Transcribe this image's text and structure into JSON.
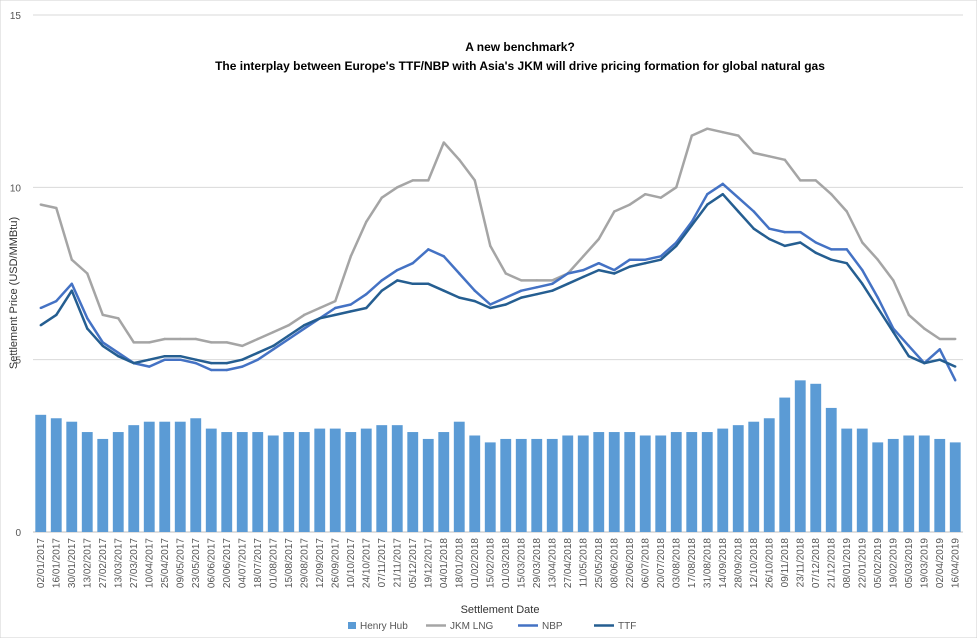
{
  "chart_data": {
    "type": "line",
    "title": "A new benchmark?",
    "subtitle": "The interplay between Europe's TTF/NBP with Asia's JKM will drive pricing formation for global natural gas",
    "xlabel": "Settlement Date",
    "ylabel": "Settlement Price (USD/MMBtu)",
    "ylim": [
      0,
      15
    ],
    "yticks": [
      "0",
      "5",
      "10",
      "15"
    ],
    "x": [
      "02/01/2017",
      "16/01/2017",
      "30/01/2017",
      "13/02/2017",
      "27/02/2017",
      "13/03/2017",
      "27/03/2017",
      "10/04/2017",
      "25/04/2017",
      "09/05/2017",
      "23/05/2017",
      "06/06/2017",
      "20/06/2017",
      "04/07/2017",
      "18/07/2017",
      "01/08/2017",
      "15/08/2017",
      "29/08/2017",
      "12/09/2017",
      "26/09/2017",
      "10/10/2017",
      "24/10/2017",
      "07/11/2017",
      "21/11/2017",
      "05/12/2017",
      "19/12/2017",
      "04/01/2018",
      "18/01/2018",
      "01/02/2018",
      "15/02/2018",
      "01/03/2018",
      "15/03/2018",
      "29/03/2018",
      "13/04/2018",
      "27/04/2018",
      "11/05/2018",
      "25/05/2018",
      "08/06/2018",
      "22/06/2018",
      "06/07/2018",
      "20/07/2018",
      "03/08/2018",
      "17/08/2018",
      "31/08/2018",
      "14/09/2018",
      "28/09/2018",
      "12/10/2018",
      "26/10/2018",
      "09/11/2018",
      "23/11/2018",
      "07/12/2018",
      "21/12/2018",
      "08/01/2019",
      "22/01/2019",
      "05/02/2019",
      "19/02/2019",
      "05/03/2019",
      "19/03/2019",
      "02/04/2019",
      "16/04/2019"
    ],
    "series": [
      {
        "name": "Henry Hub",
        "kind": "bar",
        "color": "#5b9bd5",
        "values": [
          3.4,
          3.3,
          3.2,
          2.9,
          2.7,
          2.9,
          3.1,
          3.2,
          3.2,
          3.2,
          3.3,
          3.0,
          2.9,
          2.9,
          2.9,
          2.8,
          2.9,
          2.9,
          3.0,
          3.0,
          2.9,
          3.0,
          3.1,
          3.1,
          2.9,
          2.7,
          2.9,
          3.2,
          2.8,
          2.6,
          2.7,
          2.7,
          2.7,
          2.7,
          2.8,
          2.8,
          2.9,
          2.9,
          2.9,
          2.8,
          2.8,
          2.9,
          2.9,
          2.9,
          3.0,
          3.1,
          3.2,
          3.3,
          3.9,
          4.4,
          4.3,
          3.6,
          3.0,
          3.0,
          2.6,
          2.7,
          2.8,
          2.8,
          2.7,
          2.6
        ]
      },
      {
        "name": "JKM LNG",
        "kind": "line",
        "color": "#a5a5a5",
        "values": [
          9.5,
          9.4,
          7.9,
          7.5,
          6.3,
          6.2,
          5.5,
          5.5,
          5.6,
          5.6,
          5.6,
          5.5,
          5.5,
          5.4,
          5.6,
          5.8,
          6.0,
          6.3,
          6.5,
          6.7,
          8.0,
          9.0,
          9.7,
          10.0,
          10.2,
          10.2,
          11.3,
          10.8,
          10.2,
          8.3,
          7.5,
          7.3,
          7.3,
          7.3,
          7.5,
          8.0,
          8.5,
          9.3,
          9.5,
          9.8,
          9.7,
          10.0,
          11.5,
          11.7,
          11.6,
          11.5,
          11.0,
          10.9,
          10.8,
          10.2,
          10.2,
          9.8,
          9.3,
          8.4,
          7.9,
          7.3,
          6.3,
          5.9,
          5.6,
          5.6
        ]
      },
      {
        "name": "NBP",
        "kind": "line",
        "color": "#4472c4",
        "values": [
          6.5,
          6.7,
          7.2,
          6.2,
          5.5,
          5.2,
          4.9,
          4.8,
          5.0,
          5.0,
          4.9,
          4.7,
          4.7,
          4.8,
          5.0,
          5.3,
          5.6,
          5.9,
          6.2,
          6.5,
          6.6,
          6.9,
          7.3,
          7.6,
          7.8,
          8.2,
          8.0,
          7.5,
          7.0,
          6.6,
          6.8,
          7.0,
          7.1,
          7.2,
          7.5,
          7.6,
          7.8,
          7.6,
          7.9,
          7.9,
          8.0,
          8.4,
          9.0,
          9.8,
          10.1,
          9.7,
          9.3,
          8.8,
          8.7,
          8.7,
          8.4,
          8.2,
          8.2,
          7.6,
          6.8,
          5.9,
          5.4,
          4.9,
          5.3,
          4.4
        ]
      },
      {
        "name": "TTF",
        "kind": "line",
        "color": "#255e91",
        "values": [
          6.0,
          6.3,
          7.0,
          5.9,
          5.4,
          5.1,
          4.9,
          5.0,
          5.1,
          5.1,
          5.0,
          4.9,
          4.9,
          5.0,
          5.2,
          5.4,
          5.7,
          6.0,
          6.2,
          6.3,
          6.4,
          6.5,
          7.0,
          7.3,
          7.2,
          7.2,
          7.0,
          6.8,
          6.7,
          6.5,
          6.6,
          6.8,
          6.9,
          7.0,
          7.2,
          7.4,
          7.6,
          7.5,
          7.7,
          7.8,
          7.9,
          8.3,
          8.9,
          9.5,
          9.8,
          9.3,
          8.8,
          8.5,
          8.3,
          8.4,
          8.1,
          7.9,
          7.8,
          7.2,
          6.5,
          5.8,
          5.1,
          4.9,
          5.0,
          4.8
        ]
      }
    ],
    "legend": {
      "placement": "bottom"
    },
    "grid": {
      "y": true,
      "x": false
    }
  }
}
